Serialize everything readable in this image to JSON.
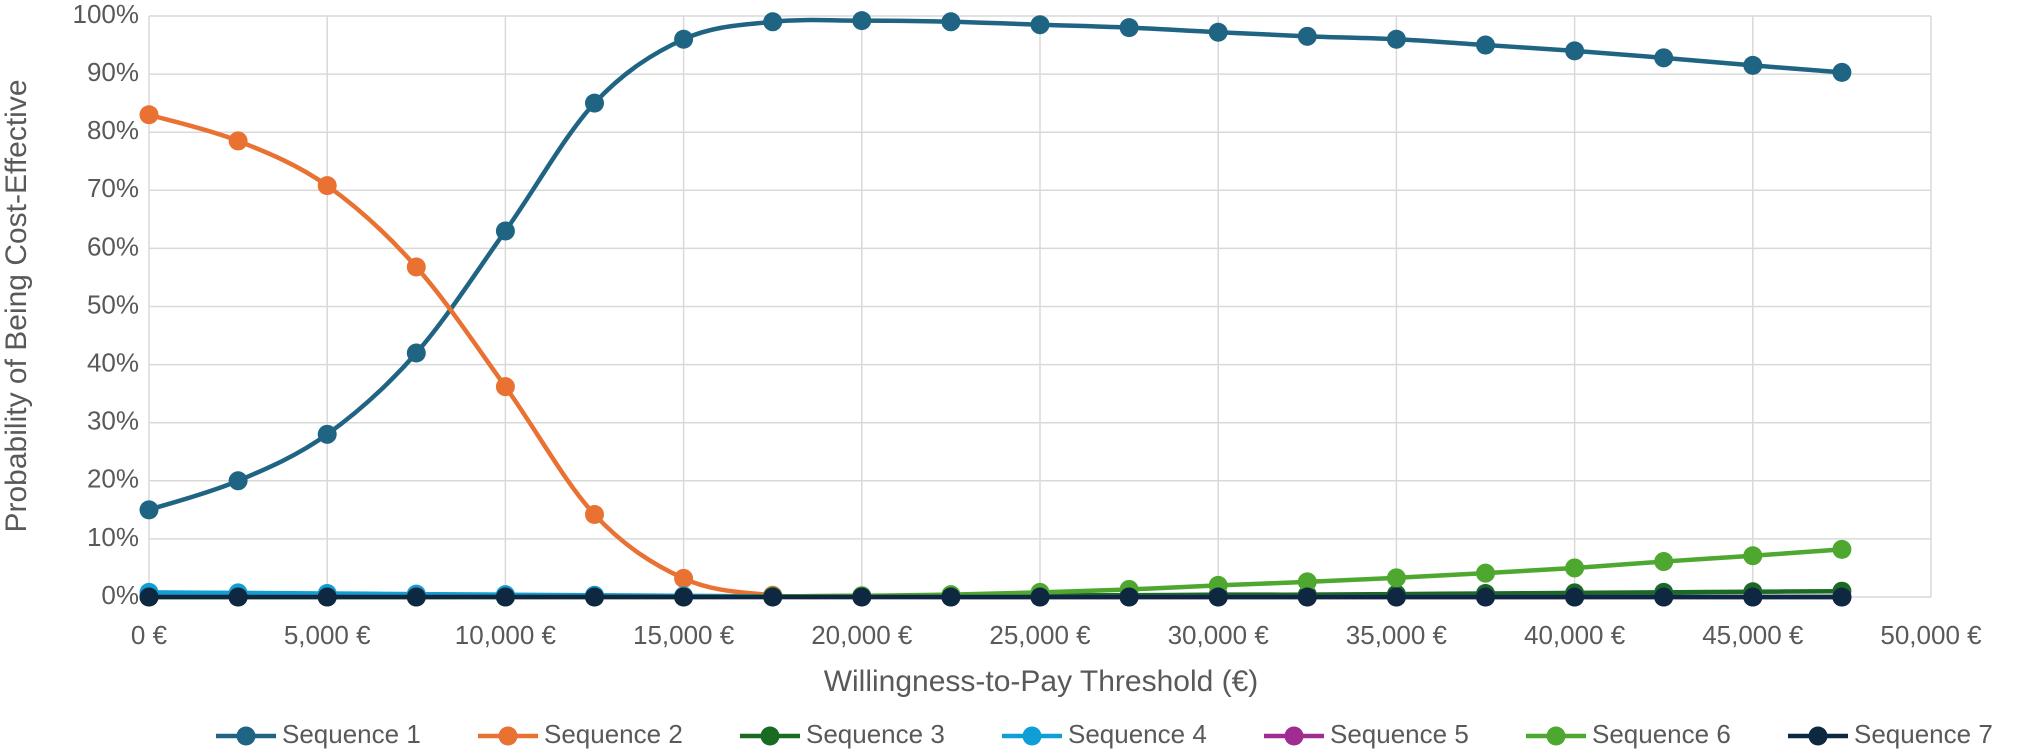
{
  "chart_data": {
    "type": "line",
    "x_label": "Willingness-to-Pay Threshold (€)",
    "y_label": "Probability of Being Cost-Effective",
    "x": [
      0,
      2500,
      5000,
      7500,
      10000,
      12500,
      15000,
      17500,
      20000,
      22500,
      25000,
      27500,
      30000,
      32500,
      35000,
      37500,
      40000,
      42500,
      45000,
      47500
    ],
    "series": [
      {
        "name": "Sequence 1",
        "color": "#1f6482",
        "values": [
          15,
          20,
          28,
          42,
          63,
          85,
          96,
          99,
          99.2,
          99,
          98.5,
          98,
          97.2,
          96.5,
          96,
          95,
          94,
          92.8,
          91.5,
          90.3
        ]
      },
      {
        "name": "Sequence 2",
        "color": "#e97132",
        "values": [
          83,
          78.5,
          70.8,
          56.8,
          36.2,
          14.2,
          3.2,
          0.3,
          0.1,
          0,
          0,
          0,
          0,
          0,
          0,
          0,
          0,
          0,
          0,
          0
        ]
      },
      {
        "name": "Sequence 3",
        "color": "#196b24",
        "values": [
          0,
          0,
          0,
          0,
          0.1,
          0.1,
          0.1,
          0.1,
          0.2,
          0.2,
          0.3,
          0.3,
          0.4,
          0.4,
          0.5,
          0.6,
          0.7,
          0.8,
          0.9,
          1.0
        ]
      },
      {
        "name": "Sequence 4",
        "color": "#0f9ed5",
        "values": [
          0.8,
          0.7,
          0.6,
          0.5,
          0.4,
          0.3,
          0.2,
          0.1,
          0.1,
          0,
          0,
          0,
          0,
          0,
          0,
          0,
          0,
          0,
          0,
          0
        ]
      },
      {
        "name": "Sequence 5",
        "color": "#a02b93",
        "values": [
          0,
          0,
          0,
          0,
          0,
          0,
          0,
          0,
          0,
          0,
          0,
          0,
          0,
          0,
          0,
          0,
          0,
          0,
          0,
          0
        ]
      },
      {
        "name": "Sequence 6",
        "color": "#4ea72e",
        "values": [
          0,
          0,
          0,
          0,
          0,
          0,
          0,
          0.1,
          0.2,
          0.4,
          0.8,
          1.3,
          2.0,
          2.6,
          3.3,
          4.1,
          5.0,
          6.1,
          7.1,
          8.2
        ]
      },
      {
        "name": "Sequence 7",
        "color": "#0e2841",
        "values": [
          0,
          0,
          0,
          0,
          0,
          0,
          0,
          0,
          0,
          0,
          0,
          0,
          0,
          0,
          0,
          0,
          0,
          0,
          0,
          0
        ]
      }
    ],
    "xlim": [
      0,
      50000
    ],
    "xticks": [
      {
        "value": 0,
        "label": "0 €"
      },
      {
        "value": 5000,
        "label": "5,000 €"
      },
      {
        "value": 10000,
        "label": "10,000 €"
      },
      {
        "value": 15000,
        "label": "15,000 €"
      },
      {
        "value": 20000,
        "label": "20,000 €"
      },
      {
        "value": 25000,
        "label": "25,000 €"
      },
      {
        "value": 30000,
        "label": "30,000 €"
      },
      {
        "value": 35000,
        "label": "35,000 €"
      },
      {
        "value": 40000,
        "label": "40,000 €"
      },
      {
        "value": 45000,
        "label": "45,000 €"
      },
      {
        "value": 50000,
        "label": "50,000 €"
      }
    ],
    "ylim": [
      0,
      100
    ],
    "yticks": [
      {
        "value": 0,
        "label": "0%"
      },
      {
        "value": 10,
        "label": "10%"
      },
      {
        "value": 20,
        "label": "20%"
      },
      {
        "value": 30,
        "label": "30%"
      },
      {
        "value": 40,
        "label": "40%"
      },
      {
        "value": 50,
        "label": "50%"
      },
      {
        "value": 60,
        "label": "60%"
      },
      {
        "value": 70,
        "label": "70%"
      },
      {
        "value": 80,
        "label": "80%"
      },
      {
        "value": 90,
        "label": "90%"
      },
      {
        "value": 100,
        "label": "100%"
      }
    ],
    "grid": true,
    "legend": "bottom"
  }
}
